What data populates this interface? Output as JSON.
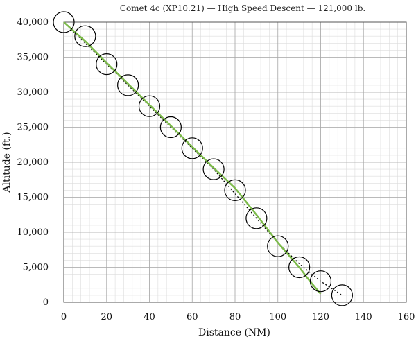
{
  "chart_data": {
    "type": "scatter",
    "title": "Comet 4c (XP10.21) — High Speed Descent — 121,000 lb.",
    "xlabel": "Distance (NM)",
    "ylabel": "Altitude (ft.)",
    "xlim": [
      0,
      160
    ],
    "ylim": [
      0,
      40000
    ],
    "x_ticks": [
      0,
      20,
      40,
      60,
      80,
      100,
      120,
      140,
      160
    ],
    "y_ticks": [
      0,
      5000,
      10000,
      15000,
      20000,
      25000,
      30000,
      35000,
      40000
    ],
    "x_tick_labels": [
      "0",
      "20",
      "40",
      "60",
      "80",
      "100",
      "120",
      "140",
      "160"
    ],
    "y_tick_labels": [
      "0",
      "5,000",
      "10,000",
      "15,000",
      "20,000",
      "25,000",
      "30,000",
      "35,000",
      "40,000"
    ],
    "x_minor_step": 4,
    "y_minor_step": 1000,
    "grid": true,
    "series": [
      {
        "marker": "circle",
        "color": "#000000",
        "x": [
          0,
          10,
          20,
          30,
          40,
          50,
          60,
          70,
          80,
          90,
          100,
          110,
          120,
          130
        ],
        "y": [
          40000,
          38000,
          34000,
          31000,
          28000,
          25000,
          22000,
          19000,
          16000,
          12000,
          8000,
          5000,
          3000,
          1000
        ]
      },
      {
        "style": "dotted-line",
        "color": "#000000",
        "x": [
          0,
          10,
          20,
          30,
          40,
          50,
          60,
          70,
          80,
          90,
          100,
          110,
          120,
          130
        ],
        "y": [
          40000,
          37000,
          34000,
          31000,
          28000,
          25000,
          22000,
          19000,
          15500,
          12000,
          8500,
          5500,
          3000,
          1000
        ]
      },
      {
        "style": "solid-line",
        "color": "#7cba4a",
        "x": [
          0,
          10,
          20,
          30,
          40,
          50,
          60,
          70,
          80,
          90,
          100,
          110,
          115,
          120
        ],
        "y": [
          40000,
          37300,
          34200,
          31200,
          28200,
          25200,
          22200,
          19200,
          16300,
          12500,
          8500,
          5000,
          3000,
          1200
        ]
      }
    ]
  }
}
